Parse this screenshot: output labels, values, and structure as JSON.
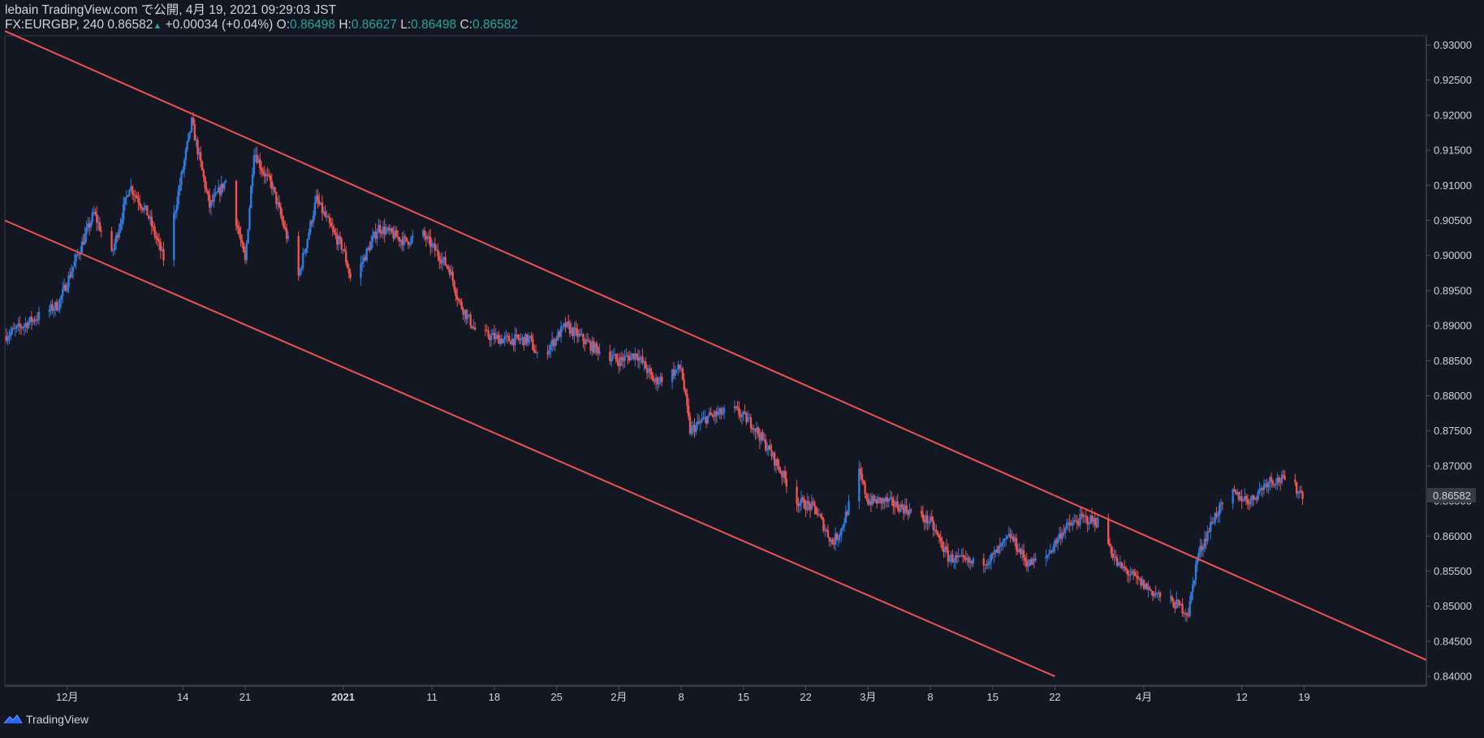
{
  "header": {
    "published": "lebain TradingView.com で公開, 4月 19, 2021 09:29:03 JST",
    "symbol": "FX:EURGBP, 240",
    "last": "0.86582",
    "change": "+0.00034 (+0.04%)",
    "o_label": "O:",
    "o_value": "0.86498",
    "h_label": "H:",
    "h_value": "0.86627",
    "l_label": "L:",
    "l_value": "0.86498",
    "c_label": "C:",
    "c_value": "0.86582"
  },
  "footer": {
    "brand": "TradingView"
  },
  "colors": {
    "background": "#131722",
    "up": "#2f7bde",
    "down": "#ef5350",
    "trendline": "#ef5350",
    "text": "#d1d4dc",
    "axis_line": "#50535e"
  },
  "chart_data": {
    "type": "candlestick",
    "symbol": "FX:EURGBP",
    "interval": "240",
    "y_axis": {
      "ticks": [
        "0.84000",
        "0.84500",
        "0.85000",
        "0.85500",
        "0.86000",
        "0.86500",
        "0.87000",
        "0.87500",
        "0.88000",
        "0.88500",
        "0.89000",
        "0.89500",
        "0.90000",
        "0.90500",
        "0.91000",
        "0.91500",
        "0.92000",
        "0.92500",
        "0.93000"
      ],
      "ylim": [
        0.84,
        0.93
      ]
    },
    "x_axis": {
      "ticks": [
        "12月",
        "14",
        "21",
        "2021",
        "11",
        "18",
        "25",
        "2月",
        "8",
        "15",
        "22",
        "3月",
        "8",
        "15",
        "22",
        "4月",
        "12",
        "19"
      ],
      "xlim": [
        "2020-11-24",
        "2021-04-28"
      ]
    },
    "last_price_label": "0.86582",
    "close_path": [
      [
        "2020-11-24",
        0.8885
      ],
      [
        "2020-11-30",
        0.893
      ],
      [
        "2020-12-04",
        0.906
      ],
      [
        "2020-12-06",
        0.9
      ],
      [
        "2020-12-08",
        0.91
      ],
      [
        "2020-12-10",
        0.906
      ],
      [
        "2020-12-12",
        0.899
      ],
      [
        "2020-12-15",
        0.919
      ],
      [
        "2020-12-17",
        0.907
      ],
      [
        "2020-12-19",
        0.911
      ],
      [
        "2020-12-21",
        0.899
      ],
      [
        "2020-12-22",
        0.915
      ],
      [
        "2020-12-23",
        0.912
      ],
      [
        "2020-12-24",
        0.91
      ],
      [
        "2020-12-27",
        0.897
      ],
      [
        "2020-12-29",
        0.908
      ],
      [
        "2020-12-31",
        0.903
      ],
      [
        "2021-01-01",
        0.901
      ],
      [
        "2021-01-02",
        0.896
      ],
      [
        "2021-01-05",
        0.904
      ],
      [
        "2021-01-08",
        0.902
      ],
      [
        "2021-01-10",
        0.903
      ],
      [
        "2021-01-13",
        0.898
      ],
      [
        "2021-01-14",
        0.8935
      ],
      [
        "2021-01-16",
        0.889
      ],
      [
        "2021-01-19",
        0.888
      ],
      [
        "2021-01-22",
        0.888
      ],
      [
        "2021-01-23",
        0.885
      ],
      [
        "2021-01-26",
        0.89
      ],
      [
        "2021-01-29",
        0.887
      ],
      [
        "2021-02-01",
        0.885
      ],
      [
        "2021-02-03",
        0.886
      ],
      [
        "2021-02-05",
        0.882
      ],
      [
        "2021-02-08",
        0.884
      ],
      [
        "2021-02-09",
        0.875
      ],
      [
        "2021-02-11",
        0.877
      ],
      [
        "2021-02-14",
        0.878
      ],
      [
        "2021-02-16",
        0.876
      ],
      [
        "2021-02-18",
        0.872
      ],
      [
        "2021-02-21",
        0.865
      ],
      [
        "2021-02-23",
        0.864
      ],
      [
        "2021-02-25",
        0.859
      ],
      [
        "2021-02-26",
        0.861
      ],
      [
        "2021-02-28",
        0.869
      ],
      [
        "2021-03-01",
        0.865
      ],
      [
        "2021-03-03",
        0.865
      ],
      [
        "2021-03-05",
        0.864
      ],
      [
        "2021-03-08",
        0.862
      ],
      [
        "2021-03-10",
        0.857
      ],
      [
        "2021-03-13",
        0.856
      ],
      [
        "2021-03-15",
        0.857
      ],
      [
        "2021-03-17",
        0.86
      ],
      [
        "2021-03-19",
        0.856
      ],
      [
        "2021-03-21",
        0.857
      ],
      [
        "2021-03-23",
        0.861
      ],
      [
        "2021-03-25",
        0.8625
      ],
      [
        "2021-03-27",
        0.862
      ],
      [
        "2021-03-29",
        0.856
      ],
      [
        "2021-03-31",
        0.854
      ],
      [
        "2021-04-02",
        0.852
      ],
      [
        "2021-04-05",
        0.85
      ],
      [
        "2021-04-06",
        0.849
      ],
      [
        "2021-04-07",
        0.857
      ],
      [
        "2021-04-09",
        0.863
      ],
      [
        "2021-04-11",
        0.866
      ],
      [
        "2021-04-13",
        0.865
      ],
      [
        "2021-04-15",
        0.868
      ],
      [
        "2021-04-17",
        0.868
      ],
      [
        "2021-04-19",
        0.86582
      ]
    ],
    "trendlines": [
      {
        "name": "upper channel",
        "points": [
          [
            "2020-11-24",
            0.932
          ],
          [
            "2021-04-28",
            0.845
          ]
        ]
      },
      {
        "name": "lower channel",
        "points": [
          [
            "2020-11-24",
            0.905
          ],
          [
            "2021-03-22",
            0.84
          ]
        ]
      }
    ]
  }
}
